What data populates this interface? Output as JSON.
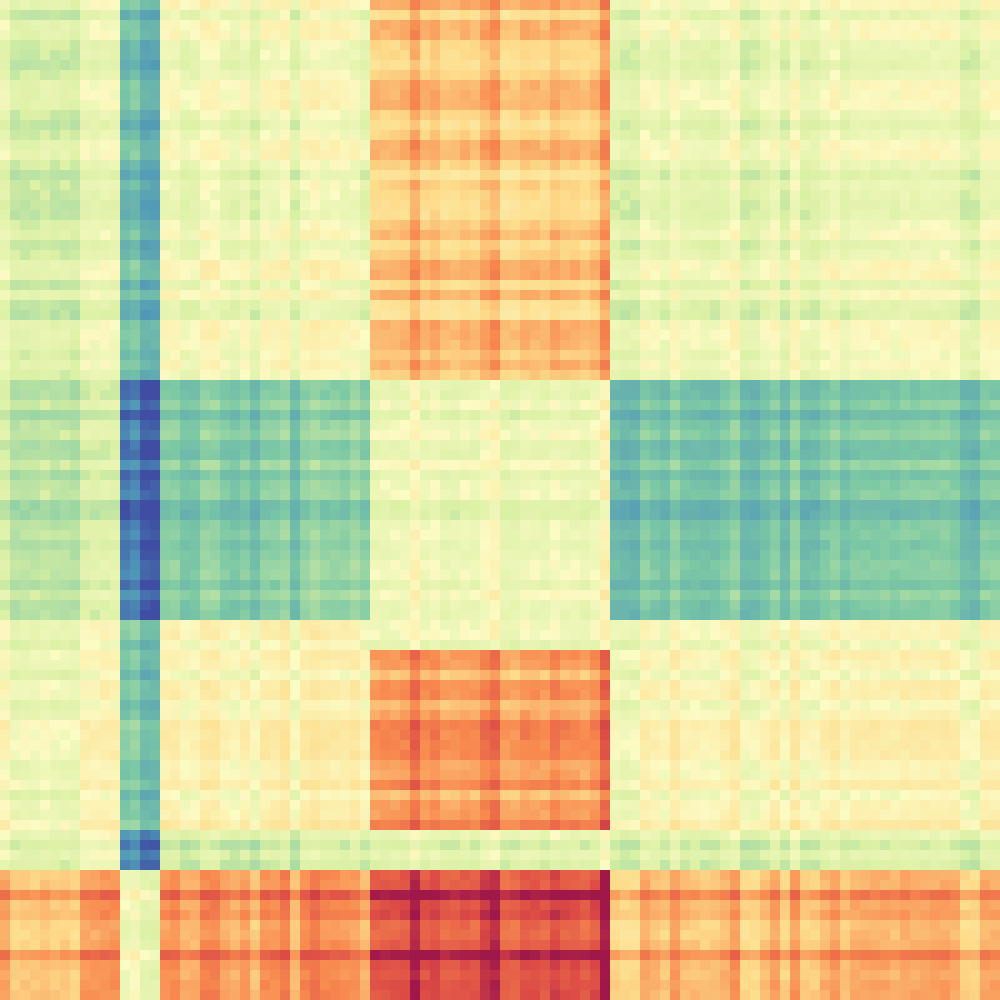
{
  "chart_data": {
    "type": "heatmap",
    "title": "",
    "xlabel": "",
    "ylabel": "",
    "grid": false,
    "legend": "none",
    "colormap": "Spectral_r",
    "value_range": [
      -1,
      1
    ],
    "row_base": [
      0.12,
      -0.6,
      0.06,
      0.38,
      -0.28,
      0.88
    ],
    "column_base": [
      -0.03,
      -0.72,
      0.1,
      0.02,
      0.72,
      0.05,
      0.04
    ],
    "cell_values": [
      [
        -0.02,
        -0.52,
        0.05,
        0.04,
        0.45,
        0.02,
        0.03
      ],
      [
        -0.1,
        -0.92,
        -0.35,
        -0.28,
        0.08,
        -0.4,
        -0.38
      ],
      [
        0.02,
        -0.48,
        0.08,
        0.06,
        0.05,
        0.04,
        0.05
      ],
      [
        0.1,
        -0.42,
        0.15,
        0.18,
        0.62,
        0.12,
        0.14
      ],
      [
        0.05,
        -0.78,
        -0.06,
        -0.02,
        0.05,
        0.0,
        -0.02
      ],
      [
        0.55,
        0.05,
        0.6,
        0.58,
        0.95,
        0.5,
        0.52
      ]
    ]
  },
  "colors": {
    "low": "#3f4da3",
    "mid_low": "#6fc2a5",
    "neutral": "#fbfbc4",
    "mid_high": "#f88a4f",
    "high": "#a0174a"
  }
}
